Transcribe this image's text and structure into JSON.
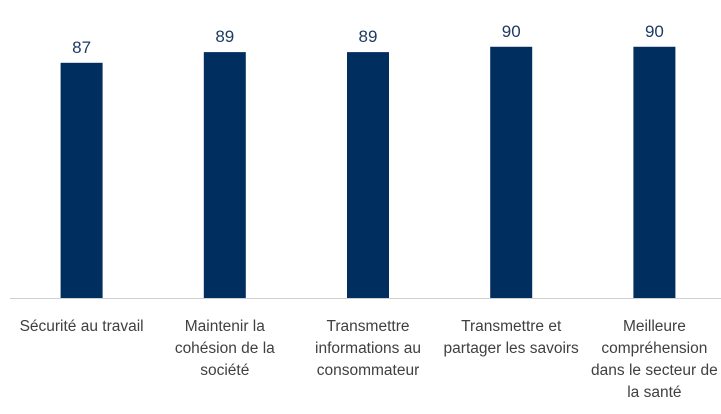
{
  "chart_data": {
    "type": "bar",
    "categories": [
      "Sécurité au travail",
      "Maintenir la cohésion de la société",
      "Transmettre informations au consommateur",
      "Transmettre et partager les savoirs",
      "Meilleure compréhension dans le secteur de la santé"
    ],
    "values": [
      87,
      89,
      89,
      90,
      90
    ],
    "color": "#002f5f",
    "ylim": [
      43,
      98
    ]
  }
}
